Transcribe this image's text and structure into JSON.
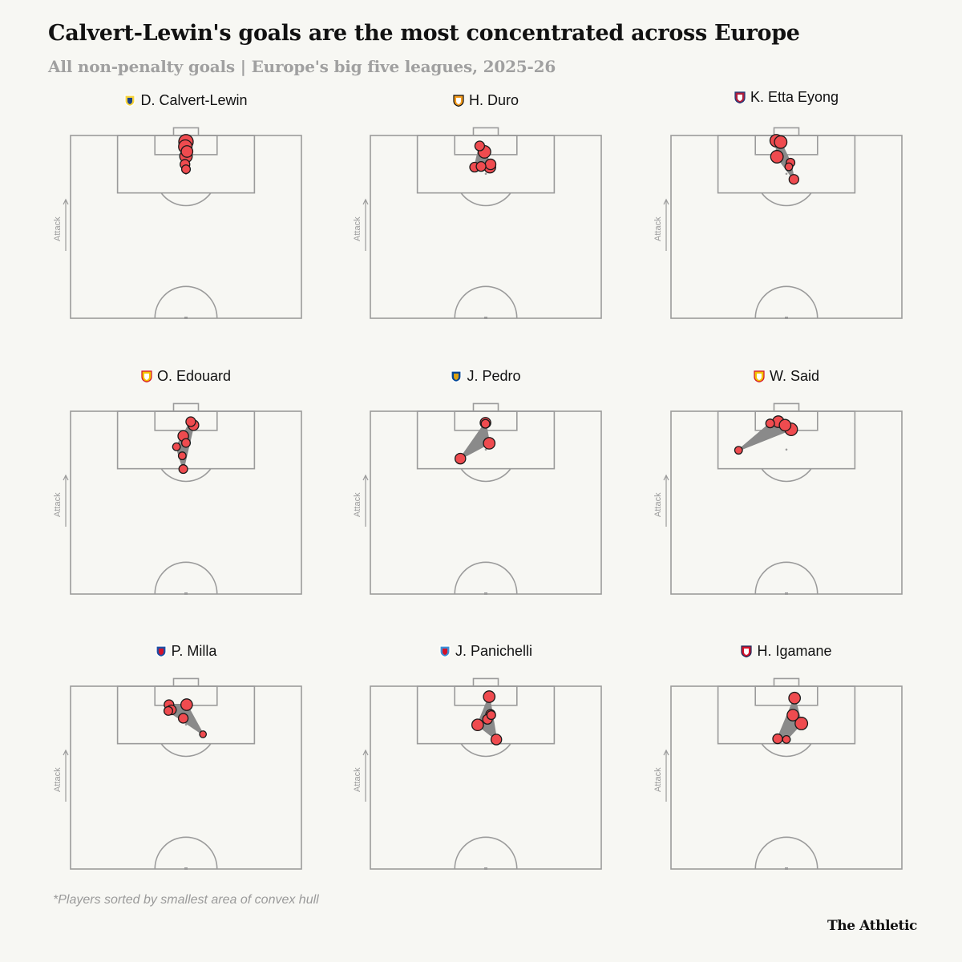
{
  "title": "Calvert-Lewin's goals are the most concentrated across Europe",
  "subtitle": "All non-penalty goals | Europe's big five leagues, 2025-26",
  "footnote": "*Players sorted by smallest area of convex hull",
  "brand": "The Athletic",
  "attack_label": "Attack",
  "colors": {
    "background": "#f7f7f3",
    "pitch_line": "#9b9b9b",
    "goal_fill": "#ef4b4f",
    "goal_stroke": "#1a1a1a",
    "hull_fill": "#8a8a8a",
    "title_text": "#121212",
    "subtitle_text": "#a0a0a0"
  },
  "chart_data": {
    "type": "scatter",
    "description_units": "x = metres across pitch width (0-68), y = metres from attacking goal line (0-52.5), size = relative shot xG",
    "pitch_half": {
      "width_m": 68,
      "length_m": 52.5
    },
    "players": [
      {
        "name": "D. Calvert-Lewin",
        "club_icon": "leeds-badge-icon",
        "badge_colors": [
          "#f6d33a",
          "#ffffff",
          "#1d428a"
        ],
        "goals": [
          {
            "x": 34.0,
            "y": 1.8,
            "size": 1.0
          },
          {
            "x": 33.8,
            "y": 3.2,
            "size": 0.9
          },
          {
            "x": 34.3,
            "y": 4.6,
            "size": 0.7
          },
          {
            "x": 34.0,
            "y": 6.0,
            "size": 0.8
          },
          {
            "x": 33.7,
            "y": 8.3,
            "size": 0.5
          },
          {
            "x": 34.0,
            "y": 9.7,
            "size": 0.4
          }
        ]
      },
      {
        "name": "H. Duro",
        "club_icon": "valencia-badge-icon",
        "badge_colors": [
          "#f29a1c",
          "#111111",
          "#ffffff"
        ],
        "goals": [
          {
            "x": 32.2,
            "y": 3.0,
            "size": 0.5
          },
          {
            "x": 33.6,
            "y": 4.7,
            "size": 0.8
          },
          {
            "x": 30.7,
            "y": 9.1,
            "size": 0.5
          },
          {
            "x": 32.6,
            "y": 8.9,
            "size": 0.5
          },
          {
            "x": 35.4,
            "y": 8.3,
            "size": 0.6
          },
          {
            "x": 35.2,
            "y": 9.1,
            "size": 0.7
          }
        ]
      },
      {
        "name": "K. Etta Eyong",
        "club_icon": "levante-badge-icon",
        "badge_colors": [
          "#b01e3c",
          "#1a3a7a",
          "#ffffff"
        ],
        "goals": [
          {
            "x": 31.0,
            "y": 1.5,
            "size": 0.8
          },
          {
            "x": 32.3,
            "y": 1.9,
            "size": 0.8
          },
          {
            "x": 31.2,
            "y": 6.1,
            "size": 0.8
          },
          {
            "x": 35.2,
            "y": 7.8,
            "size": 0.4
          },
          {
            "x": 34.7,
            "y": 9.0,
            "size": 0.3
          },
          {
            "x": 36.2,
            "y": 12.6,
            "size": 0.5
          }
        ]
      },
      {
        "name": "O. Edouard",
        "club_icon": "lens-badge-icon",
        "badge_colors": [
          "#f4c200",
          "#d3122a",
          "#ffffff"
        ],
        "goals": [
          {
            "x": 35.4,
            "y": 3.0,
            "size": 0.5
          },
          {
            "x": 36.2,
            "y": 4.0,
            "size": 0.6
          },
          {
            "x": 33.2,
            "y": 7.1,
            "size": 0.6
          },
          {
            "x": 34.0,
            "y": 9.1,
            "size": 0.4
          },
          {
            "x": 31.2,
            "y": 10.2,
            "size": 0.3
          },
          {
            "x": 32.9,
            "y": 12.8,
            "size": 0.3
          },
          {
            "x": 33.2,
            "y": 16.6,
            "size": 0.4
          }
        ]
      },
      {
        "name": "J. Pedro",
        "club_icon": "chelsea-badge-icon",
        "badge_colors": [
          "#034694",
          "#ffffff",
          "#dba111"
        ],
        "goals": [
          {
            "x": 33.9,
            "y": 3.3,
            "size": 0.6
          },
          {
            "x": 33.9,
            "y": 3.6,
            "size": 0.4
          },
          {
            "x": 35.0,
            "y": 9.2,
            "size": 0.7
          },
          {
            "x": 26.5,
            "y": 13.6,
            "size": 0.6
          }
        ]
      },
      {
        "name": "W. Said",
        "club_icon": "lens-badge-icon",
        "badge_colors": [
          "#f4c200",
          "#d3122a",
          "#ffffff"
        ],
        "goals": [
          {
            "x": 29.2,
            "y": 3.5,
            "size": 0.4
          },
          {
            "x": 31.6,
            "y": 3.0,
            "size": 0.7
          },
          {
            "x": 33.6,
            "y": 4.0,
            "size": 0.7
          },
          {
            "x": 35.4,
            "y": 5.2,
            "size": 0.8
          },
          {
            "x": 19.9,
            "y": 11.2,
            "size": 0.3
          }
        ]
      },
      {
        "name": "P. Milla",
        "club_icon": "espanyol-badge-icon",
        "badge_colors": [
          "#1f4fa3",
          "#ffffff",
          "#d3122a"
        ],
        "goals": [
          {
            "x": 29.0,
            "y": 5.3,
            "size": 0.5
          },
          {
            "x": 29.7,
            "y": 6.8,
            "size": 0.5
          },
          {
            "x": 28.8,
            "y": 7.1,
            "size": 0.4
          },
          {
            "x": 34.2,
            "y": 5.3,
            "size": 0.7
          },
          {
            "x": 33.2,
            "y": 9.2,
            "size": 0.5
          },
          {
            "x": 39.0,
            "y": 13.8,
            "size": 0.2
          }
        ]
      },
      {
        "name": "J. Panichelli",
        "club_icon": "strasbourg-badge-icon",
        "badge_colors": [
          "#3d8fd6",
          "#ffffff",
          "#d3122a"
        ],
        "goals": [
          {
            "x": 35.0,
            "y": 3.0,
            "size": 0.7
          },
          {
            "x": 35.4,
            "y": 8.1,
            "size": 0.5
          },
          {
            "x": 35.6,
            "y": 8.3,
            "size": 0.4
          },
          {
            "x": 34.5,
            "y": 9.5,
            "size": 0.5
          },
          {
            "x": 31.6,
            "y": 11.1,
            "size": 0.7
          },
          {
            "x": 37.1,
            "y": 15.3,
            "size": 0.6
          }
        ]
      },
      {
        "name": "H. Igamane",
        "club_icon": "lille-badge-icon",
        "badge_colors": [
          "#d3122a",
          "#1a2a5a",
          "#ffffff"
        ],
        "goals": [
          {
            "x": 36.4,
            "y": 3.4,
            "size": 0.7
          },
          {
            "x": 35.9,
            "y": 8.3,
            "size": 0.7
          },
          {
            "x": 38.4,
            "y": 10.7,
            "size": 0.8
          },
          {
            "x": 31.4,
            "y": 15.1,
            "size": 0.5
          },
          {
            "x": 34.0,
            "y": 15.3,
            "size": 0.3
          }
        ]
      }
    ]
  }
}
